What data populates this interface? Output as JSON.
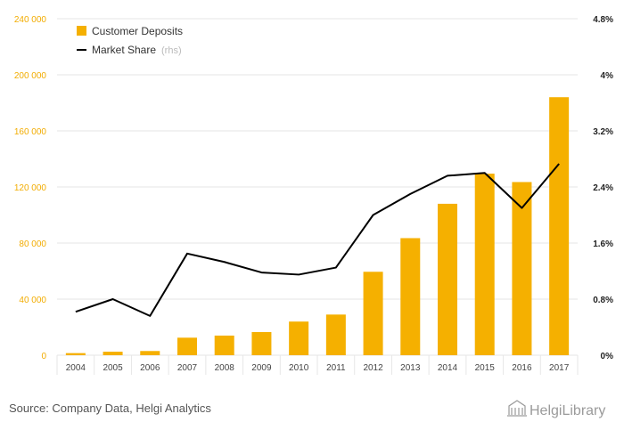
{
  "chart_data": {
    "type": "bar",
    "categories": [
      "2004",
      "2005",
      "2006",
      "2007",
      "2008",
      "2009",
      "2010",
      "2011",
      "2012",
      "2013",
      "2014",
      "2015",
      "2016",
      "2017"
    ],
    "series": [
      {
        "name": "Customer Deposits",
        "type": "bar",
        "axis": "left",
        "color": "#f5b000",
        "values": [
          1500,
          2500,
          3000,
          12500,
          14000,
          16500,
          24000,
          29000,
          59500,
          83500,
          108000,
          129500,
          123500,
          184000
        ]
      },
      {
        "name": "Market Share",
        "name_suffix": "(rhs)",
        "type": "line",
        "axis": "right",
        "unit": "%",
        "color": "#000000",
        "values": [
          0.62,
          0.8,
          0.56,
          1.45,
          1.33,
          1.18,
          1.15,
          1.25,
          2.0,
          2.3,
          2.56,
          2.6,
          2.1,
          2.73
        ]
      }
    ],
    "y_left": {
      "min": 0,
      "max": 240000,
      "ticks": [
        0,
        40000,
        80000,
        120000,
        160000,
        200000,
        240000
      ],
      "tick_labels": [
        "0",
        "40 000",
        "80 000",
        "120 000",
        "160 000",
        "200 000",
        "240 000"
      ]
    },
    "y_right": {
      "min": 0,
      "max": 4.8,
      "ticks": [
        0,
        0.8,
        1.6,
        2.4,
        3.2,
        4,
        4.8
      ],
      "tick_labels": [
        "0%",
        "0.8%",
        "1.6%",
        "2.4%",
        "3.2%",
        "4%",
        "4.8%"
      ]
    },
    "grid": true,
    "legend_position": "top-left",
    "title": "",
    "xlabel": "",
    "ylabel": ""
  },
  "source_text": "Source: Company Data, Helgi Analytics",
  "logo": {
    "text": "HelgiLibrary",
    "icon": "library-building-icon"
  },
  "colors": {
    "grid": "#e6e6e6",
    "left_tick": "#f2ac00",
    "bar": "#f5b000"
  }
}
